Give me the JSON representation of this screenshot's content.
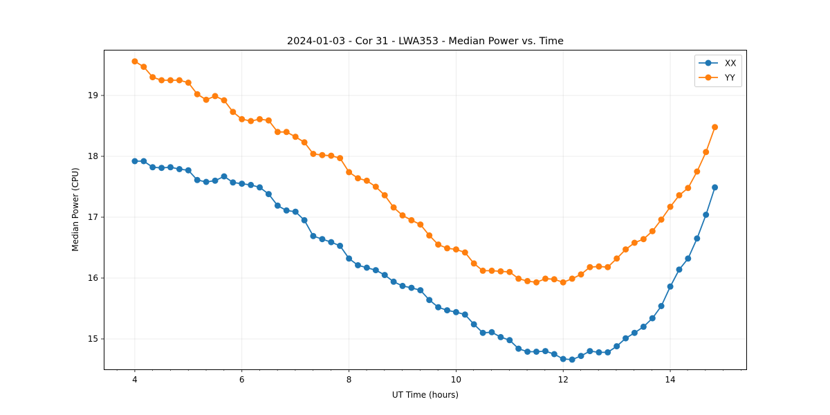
{
  "chart_data": {
    "type": "line",
    "title": "2024-01-03 - Cor 31 - LWA353 - Median Power vs. Time",
    "xlabel": "UT Time (hours)",
    "ylabel": "Median Power (CPU)",
    "xlim": [
      3.42,
      15.42
    ],
    "ylim": [
      14.5,
      19.75
    ],
    "xticks": [
      4,
      6,
      8,
      10,
      12,
      14
    ],
    "yticks": [
      15,
      16,
      17,
      18,
      19
    ],
    "x_minor_step": 0.333,
    "grid": true,
    "legend_position": "top-right",
    "x": [
      4.0,
      4.167,
      4.333,
      4.5,
      4.667,
      4.833,
      5.0,
      5.167,
      5.333,
      5.5,
      5.667,
      5.833,
      6.0,
      6.167,
      6.333,
      6.5,
      6.667,
      6.833,
      7.0,
      7.167,
      7.333,
      7.5,
      7.667,
      7.833,
      8.0,
      8.167,
      8.333,
      8.5,
      8.667,
      8.833,
      9.0,
      9.167,
      9.333,
      9.5,
      9.667,
      9.833,
      10.0,
      10.167,
      10.333,
      10.5,
      10.667,
      10.833,
      11.0,
      11.167,
      11.333,
      11.5,
      11.667,
      11.833,
      12.0,
      12.167,
      12.333,
      12.5,
      12.667,
      12.833,
      13.0,
      13.167,
      13.333,
      13.5,
      13.667,
      13.833,
      14.0,
      14.167,
      14.333,
      14.5,
      14.667,
      14.833
    ],
    "series": [
      {
        "name": "XX",
        "color": "#1f77b4",
        "values": [
          17.92,
          17.92,
          17.82,
          17.81,
          17.82,
          17.79,
          17.77,
          17.61,
          17.58,
          17.6,
          17.67,
          17.57,
          17.55,
          17.53,
          17.49,
          17.38,
          17.19,
          17.11,
          17.09,
          16.95,
          16.69,
          16.64,
          16.59,
          16.53,
          16.32,
          16.21,
          16.17,
          16.13,
          16.05,
          15.94,
          15.87,
          15.84,
          15.8,
          15.64,
          15.52,
          15.47,
          15.44,
          15.4,
          15.24,
          15.1,
          15.11,
          15.03,
          14.98,
          14.84,
          14.79,
          14.79,
          14.8,
          14.75,
          14.67,
          14.66,
          14.72,
          14.8,
          14.78,
          14.78,
          14.88,
          15.01,
          15.1,
          15.2,
          15.34,
          15.54,
          15.86,
          16.14,
          16.32,
          16.65,
          17.04,
          17.49
        ]
      },
      {
        "name": "YY",
        "color": "#ff7f0e",
        "values": [
          19.56,
          19.47,
          19.3,
          19.25,
          19.25,
          19.25,
          19.21,
          19.02,
          18.93,
          18.99,
          18.92,
          18.73,
          18.61,
          18.58,
          18.61,
          18.59,
          18.4,
          18.4,
          18.32,
          18.23,
          18.04,
          18.02,
          18.01,
          17.97,
          17.74,
          17.64,
          17.6,
          17.5,
          17.36,
          17.16,
          17.03,
          16.95,
          16.88,
          16.7,
          16.55,
          16.49,
          16.47,
          16.42,
          16.24,
          16.12,
          16.12,
          16.11,
          16.1,
          15.99,
          15.95,
          15.93,
          15.99,
          15.98,
          15.93,
          15.99,
          16.06,
          16.18,
          16.19,
          16.18,
          16.32,
          16.47,
          16.58,
          16.64,
          16.77,
          16.96,
          17.17,
          17.36,
          17.48,
          17.75,
          18.07,
          18.48
        ]
      }
    ]
  }
}
